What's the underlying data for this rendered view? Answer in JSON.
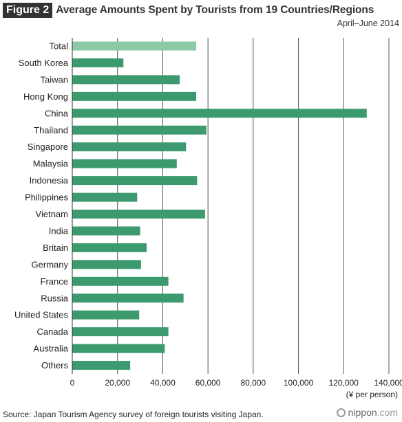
{
  "figure_label": "Figure 2",
  "logo": {
    "main": "nippon",
    "suffix": ".com"
  },
  "source": "Source: Japan Tourism Agency survey of foreign tourists visiting Japan.",
  "colors": {
    "bar": "#3d9a6e",
    "highlight": "#8ec9a6",
    "grid": "#555555"
  },
  "chart_data": {
    "type": "bar",
    "orientation": "horizontal",
    "title": "Average Amounts Spent by Tourists from 19 Countries/Regions",
    "subtitle": "April–June 2014",
    "xlabel": "(¥ per person)",
    "xlim": [
      0,
      140000
    ],
    "xticks": [
      0,
      20000,
      40000,
      60000,
      80000,
      100000,
      120000,
      140000
    ],
    "xtick_labels": [
      "0",
      "20,000",
      "40,000",
      "60,000",
      "80,000",
      "100,000",
      "120,000",
      "140,000"
    ],
    "grid": true,
    "categories": [
      "Total",
      "South Korea",
      "Taiwan",
      "Hong Kong",
      "China",
      "Thailand",
      "Singapore",
      "Malaysia",
      "Indonesia",
      "Philippines",
      "Vietnam",
      "India",
      "Britain",
      "Germany",
      "France",
      "Russia",
      "United States",
      "Canada",
      "Australia",
      "Others"
    ],
    "values": [
      54800,
      22600,
      47500,
      54800,
      130200,
      59300,
      50300,
      46200,
      55200,
      28700,
      58700,
      30000,
      32900,
      30400,
      42500,
      49200,
      29600,
      42500,
      40900,
      25600
    ],
    "highlight": [
      "Total"
    ]
  }
}
